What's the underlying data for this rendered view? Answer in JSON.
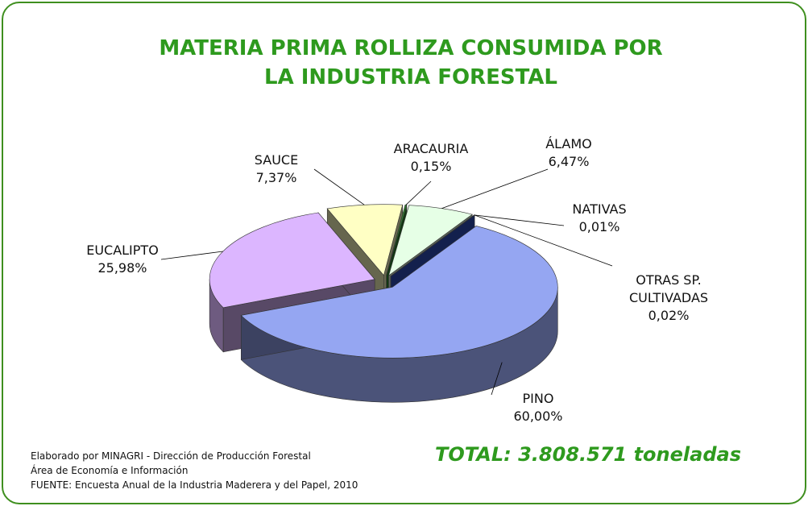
{
  "chart_data": {
    "type": "pie",
    "title": "MATERIA PRIMA ROLLIZA CONSUMIDA POR LA INDUSTRIA FORESTAL",
    "categories": [
      "SAUCE",
      "ARACAURIA",
      "ÁLAMO",
      "NATIVAS",
      "OTRAS SP. CULTIVADAS",
      "PINO",
      "EUCALIPTO"
    ],
    "values": [
      7.37,
      0.15,
      6.47,
      0.01,
      0.02,
      60.0,
      25.98
    ],
    "value_labels": [
      "7,37%",
      "0,15%",
      "6,47%",
      "0,01%",
      "0,02%",
      "60,00%",
      "25,98%"
    ],
    "colors": [
      "#ffffc4",
      "#2e8b2e",
      "#e6ffe6",
      "#cc2020",
      "#3050c0",
      "#95a6f2",
      "#dcb6ff"
    ],
    "notes": [
      "Elaborado por MINAGRI - Dirección de Producción Forestal",
      "Área de Economía e Información",
      "FUENTE: Encuesta Anual de la Industria Maderera y del Papel, 2010"
    ],
    "total": "TOTAL: 3.808.571 toneladas"
  }
}
